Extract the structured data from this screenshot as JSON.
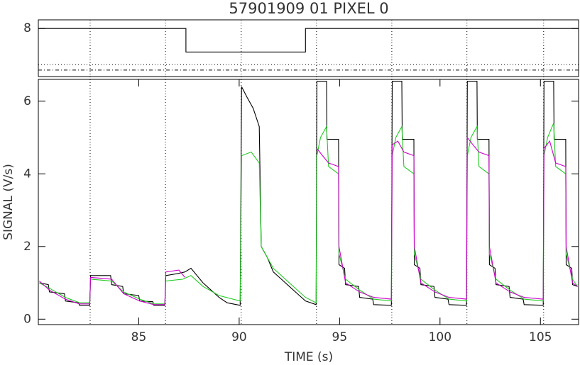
{
  "chart_data": [
    {
      "type": "line",
      "title": "57901909 01 PIXEL 0",
      "xlim": [
        80,
        106.9
      ],
      "ylim": [
        6.67,
        8.24
      ],
      "yticks": [
        8
      ],
      "series": [
        {
          "color": "#000000",
          "x": [
            80,
            87.35,
            87.35,
            93.3,
            93.3,
            106.9
          ],
          "values": [
            8,
            8,
            7.35,
            7.35,
            8,
            8
          ]
        }
      ],
      "hlines": [
        {
          "value": 7.0,
          "style": "dotted"
        },
        {
          "value": 6.85,
          "style": "dashdot"
        }
      ]
    },
    {
      "type": "line",
      "xlabel": "TIME (s)",
      "ylabel": "SIGNAL (V/s)",
      "xlim": [
        80,
        106.9
      ],
      "ylim": [
        -0.15,
        6.6
      ],
      "xticks": [
        85,
        90,
        95,
        100,
        105
      ],
      "yticks": [
        0,
        2,
        4,
        6
      ],
      "vlines": [
        82.58,
        86.33,
        90.1,
        93.85,
        97.6,
        101.34,
        105.16
      ],
      "series": [
        {
          "color": "#000000",
          "x": [
            80.05,
            80.5,
            80.55,
            81.3,
            81.35,
            82.0,
            82.05,
            82.56,
            82.6,
            83.6,
            83.65,
            84.2,
            84.25,
            85.0,
            85.05,
            85.7,
            85.75,
            86.3,
            86.35,
            86.9,
            87.3,
            87.6,
            87.9,
            88.2,
            88.6,
            89.0,
            89.4,
            90.05,
            90.12,
            90.4,
            90.7,
            91.0,
            91.1,
            91.4,
            91.7,
            92.1,
            92.5,
            92.9,
            93.3,
            93.83,
            93.87,
            94.35,
            94.37,
            94.95,
            94.97,
            95.25,
            95.3,
            95.95,
            96.0,
            96.65,
            96.7,
            97.58,
            97.62,
            98.1,
            98.12,
            98.7,
            98.72,
            99.0,
            99.05,
            99.7,
            99.75,
            100.4,
            100.45,
            101.32,
            101.36,
            101.84,
            101.86,
            102.44,
            102.46,
            102.74,
            102.79,
            103.44,
            103.49,
            104.14,
            104.19,
            105.14,
            105.18,
            105.66,
            105.68,
            106.26,
            106.28,
            106.56,
            106.6,
            106.85
          ],
          "values": [
            1.0,
            0.95,
            0.75,
            0.7,
            0.5,
            0.45,
            0.38,
            0.38,
            1.2,
            1.2,
            0.95,
            0.9,
            0.7,
            0.65,
            0.5,
            0.48,
            0.38,
            0.38,
            1.2,
            1.25,
            1.3,
            1.4,
            1.2,
            1.0,
            0.8,
            0.6,
            0.45,
            0.38,
            6.4,
            6.1,
            5.8,
            5.3,
            2.0,
            1.7,
            1.3,
            1.1,
            0.9,
            0.7,
            0.5,
            0.4,
            6.55,
            6.55,
            4.95,
            4.95,
            1.5,
            1.4,
            0.95,
            0.9,
            0.6,
            0.55,
            0.4,
            0.38,
            6.55,
            6.55,
            4.95,
            4.95,
            1.5,
            1.4,
            0.95,
            0.9,
            0.6,
            0.55,
            0.4,
            0.38,
            6.55,
            6.55,
            4.95,
            4.95,
            1.5,
            1.4,
            0.95,
            0.9,
            0.6,
            0.55,
            0.4,
            0.38,
            6.55,
            6.55,
            4.95,
            4.95,
            1.5,
            1.4,
            0.95,
            0.9
          ]
        },
        {
          "color": "#22cc22",
          "x": [
            80.05,
            80.55,
            81.35,
            82.05,
            82.56,
            82.6,
            83.65,
            84.25,
            85.05,
            85.75,
            86.3,
            86.35,
            87.2,
            87.6,
            88.2,
            89.0,
            90.05,
            90.12,
            90.6,
            91.0,
            91.1,
            91.7,
            92.5,
            93.3,
            93.83,
            93.87,
            94.05,
            94.35,
            94.45,
            94.95,
            94.97,
            95.3,
            96.0,
            96.7,
            97.58,
            97.62,
            97.8,
            98.1,
            98.2,
            98.7,
            98.72,
            99.05,
            99.75,
            100.45,
            101.32,
            101.36,
            101.54,
            101.84,
            101.94,
            102.44,
            102.46,
            102.79,
            103.49,
            104.19,
            105.14,
            105.18,
            105.36,
            105.66,
            105.76,
            106.26,
            106.28,
            106.6,
            106.85
          ],
          "values": [
            1.0,
            0.85,
            0.6,
            0.45,
            0.45,
            1.1,
            1.05,
            0.75,
            0.55,
            0.42,
            0.42,
            1.05,
            1.1,
            1.2,
            0.9,
            0.65,
            0.5,
            4.5,
            4.6,
            4.3,
            2.0,
            1.4,
            1.0,
            0.6,
            0.45,
            4.5,
            5.0,
            5.3,
            4.2,
            4.0,
            1.8,
            1.1,
            0.8,
            0.55,
            0.5,
            4.5,
            5.0,
            5.3,
            4.2,
            4.0,
            1.8,
            1.1,
            0.8,
            0.55,
            0.5,
            4.5,
            5.0,
            5.3,
            4.2,
            4.0,
            1.8,
            1.1,
            0.8,
            0.55,
            0.5,
            4.5,
            5.0,
            5.4,
            4.2,
            4.0,
            1.8,
            1.1,
            0.9
          ]
        },
        {
          "color": "#cc00cc",
          "x": [
            80.05,
            80.55,
            81.35,
            82.05,
            82.56,
            82.6,
            83.65,
            84.25,
            85.05,
            85.75,
            86.3,
            86.35,
            87.0,
            87.3,
            null,
            93.87,
            94.15,
            94.45,
            94.95,
            94.97,
            95.3,
            96.0,
            96.7,
            97.58,
            97.62,
            97.9,
            98.2,
            98.7,
            98.72,
            99.05,
            99.75,
            100.45,
            101.32,
            101.36,
            101.64,
            101.94,
            102.44,
            102.46,
            102.79,
            103.49,
            104.19,
            105.14,
            105.18,
            105.46,
            105.76,
            106.26,
            106.28,
            106.6,
            106.85
          ],
          "values": [
            1.05,
            0.8,
            0.55,
            0.42,
            0.42,
            1.15,
            1.1,
            0.7,
            0.5,
            0.4,
            0.4,
            1.3,
            1.35,
            1.15,
            null,
            4.7,
            4.5,
            4.3,
            4.2,
            2.0,
            1.0,
            0.75,
            0.6,
            0.55,
            4.8,
            4.9,
            4.6,
            4.5,
            2.0,
            1.0,
            0.75,
            0.6,
            0.55,
            5.0,
            4.8,
            4.6,
            4.5,
            2.0,
            1.0,
            0.75,
            0.6,
            0.55,
            4.7,
            4.9,
            4.3,
            4.2,
            2.0,
            1.0,
            0.9
          ]
        }
      ]
    }
  ]
}
